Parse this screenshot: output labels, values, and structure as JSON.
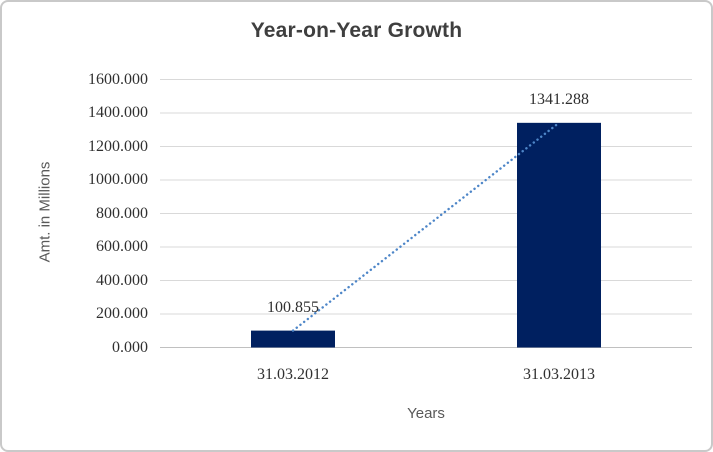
{
  "frame": {
    "background": "#FFFFFF",
    "border_color": "#C9C9C9"
  },
  "chart_data": {
    "type": "bar",
    "title": "Year-on-Year Growth",
    "xlabel": "Years",
    "ylabel": "Amt. in Millions",
    "categories": [
      "31.03.2012",
      "31.03.2013"
    ],
    "values": [
      100.855,
      1341.288
    ],
    "data_labels": [
      "100.855",
      "1341.288"
    ],
    "ylim": [
      0,
      1600
    ],
    "y_tick_step": 200,
    "y_ticks": [
      {
        "value": 1600,
        "label": "1600.000"
      },
      {
        "value": 1400,
        "label": "1400.000"
      },
      {
        "value": 1200,
        "label": "1200.000"
      },
      {
        "value": 1000,
        "label": "1000.000"
      },
      {
        "value": 800,
        "label": "800.000"
      },
      {
        "value": 600,
        "label": "600.000"
      },
      {
        "value": 400,
        "label": "400.000"
      },
      {
        "value": 200,
        "label": "200.000"
      },
      {
        "value": 0,
        "label": "0.000"
      }
    ],
    "grid": true,
    "legend": false,
    "bar_color": "#002060",
    "gridline_color": "#D9D9D9",
    "axis_line_color": "#C0C0C0",
    "trendline": {
      "type": "linear",
      "style": "dotted",
      "color": "#4E86C8"
    }
  }
}
